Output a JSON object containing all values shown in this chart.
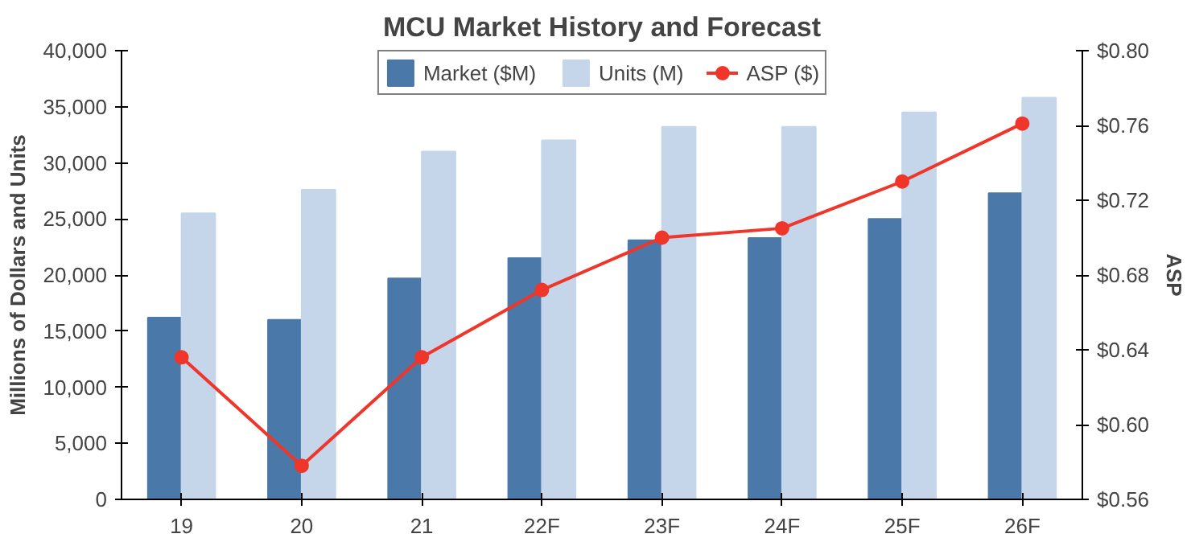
{
  "chart_data": {
    "type": "bar",
    "title": "MCU Market History and Forecast",
    "ylabel": "Millions of Dollars and Units",
    "y2label": "ASP",
    "categories": [
      "19",
      "20",
      "21",
      "22F",
      "23F",
      "24F",
      "25F",
      "26F"
    ],
    "series": [
      {
        "name": "Market ($M)",
        "color": "#4a78a8",
        "values": [
          16200,
          16000,
          19700,
          21500,
          23100,
          23300,
          25000,
          27300
        ]
      },
      {
        "name": "Units (M)",
        "color": "#c5d6ea",
        "values": [
          25500,
          27600,
          31000,
          32000,
          33200,
          33200,
          34500,
          35800
        ]
      },
      {
        "name": "ASP ($)",
        "type": "line",
        "axis": "y2",
        "color": "#f0352a",
        "marker": "circle",
        "values": [
          0.636,
          0.578,
          0.636,
          0.672,
          0.7,
          0.705,
          0.73,
          0.761
        ]
      }
    ],
    "ylim": [
      0,
      40000
    ],
    "yticks": [
      {
        "value": 0,
        "label": "0"
      },
      {
        "value": 5000,
        "label": "5,000"
      },
      {
        "value": 10000,
        "label": "10,000"
      },
      {
        "value": 15000,
        "label": "15,000"
      },
      {
        "value": 20000,
        "label": "20,000"
      },
      {
        "value": 25000,
        "label": "25,000"
      },
      {
        "value": 30000,
        "label": "30,000"
      },
      {
        "value": 35000,
        "label": "35,000"
      },
      {
        "value": 40000,
        "label": "40,000"
      }
    ],
    "y2lim": [
      0.56,
      0.8
    ],
    "y2ticks": [
      {
        "value": 0.56,
        "label": "$0.56"
      },
      {
        "value": 0.6,
        "label": "$0.60"
      },
      {
        "value": 0.64,
        "label": "$0.64"
      },
      {
        "value": 0.68,
        "label": "$0.68"
      },
      {
        "value": 0.72,
        "label": "$0.72"
      },
      {
        "value": 0.76,
        "label": "$0.76"
      },
      {
        "value": 0.8,
        "label": "$0.80"
      }
    ],
    "grid": false,
    "legend": "top"
  }
}
